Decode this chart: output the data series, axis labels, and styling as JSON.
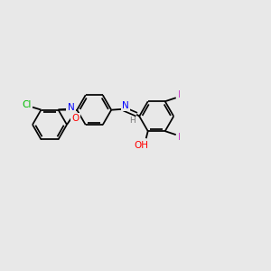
{
  "background_color": "#e8e8e8",
  "bond_color": "#000000",
  "atom_colors": {
    "Cl": "#00bb00",
    "N": "#0000ff",
    "O": "#ff0000",
    "I": "#cc44cc",
    "H_gray": "#777777"
  },
  "figsize": [
    3.0,
    3.0
  ],
  "dpi": 100
}
